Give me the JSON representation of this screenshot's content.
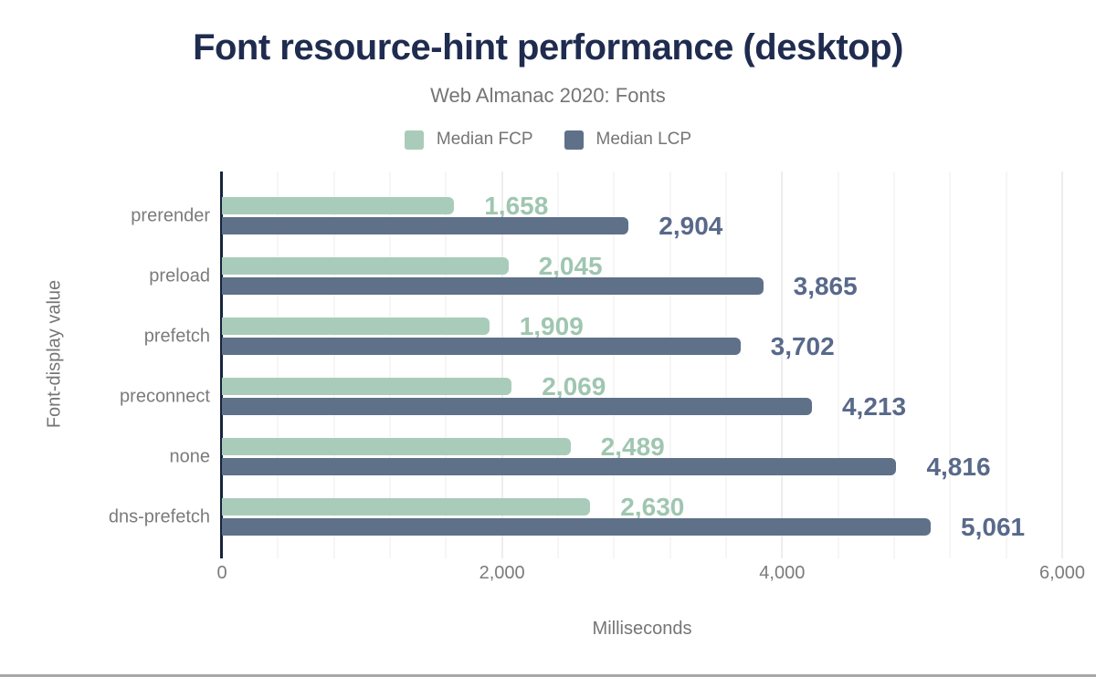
{
  "header": {
    "title": "Font resource-hint performance (desktop)",
    "subtitle": "Web Almanac 2020: Fonts"
  },
  "chart_data": {
    "type": "bar",
    "orientation": "horizontal",
    "title": "Font resource-hint performance (desktop)",
    "subtitle": "Web Almanac 2020: Fonts",
    "categories": [
      "prerender",
      "preload",
      "prefetch",
      "preconnect",
      "none",
      "dns-prefetch"
    ],
    "series": [
      {
        "name": "Median FCP",
        "color": "#a9ccba",
        "label_color": "#9fc6b0",
        "values": [
          1658,
          2045,
          1909,
          2069,
          2489,
          2630
        ]
      },
      {
        "name": "Median LCP",
        "color": "#5f7089",
        "label_color": "#58698a",
        "values": [
          2904,
          3865,
          3702,
          4213,
          4816,
          5061
        ]
      }
    ],
    "value_labels": [
      "1,658",
      "2,045",
      "1,909",
      "2,069",
      "2,489",
      "2,630",
      "2,904",
      "3,865",
      "3,702",
      "4,213",
      "4,816",
      "5,061"
    ],
    "xlabel": "Milliseconds",
    "ylabel": "Font-display value",
    "xlim": [
      0,
      6000
    ],
    "x_ticks": [
      0,
      2000,
      4000,
      6000
    ],
    "x_tick_labels": [
      "0",
      "2,000",
      "4,000",
      "6,000"
    ],
    "minor_gridline_step": 400,
    "grid": true,
    "legend_position": "top",
    "colors": {
      "title": "#1f2c4f",
      "subtitle": "#757575",
      "axis_line": "#16243d",
      "tick_text": "#7b7b7b"
    }
  }
}
